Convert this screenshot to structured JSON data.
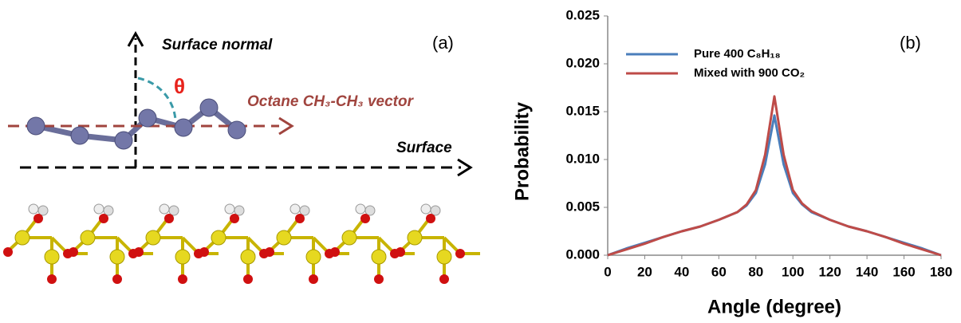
{
  "diagram": {
    "labels": {
      "normal": "Surface normal",
      "panel": "(a)",
      "angle": "θ",
      "vector": "Octane CH₃-CH₃ vector",
      "surface": "Surface"
    }
  },
  "chart_data": {
    "type": "line",
    "panel_label": "(b)",
    "x_label": "Angle (degree)",
    "y_label": "Probability",
    "xlim": [
      0,
      180
    ],
    "xticks": [
      0,
      20,
      40,
      60,
      80,
      100,
      120,
      140,
      160,
      180
    ],
    "ylim": [
      0,
      0.025
    ],
    "yticks": [
      {
        "value": 0,
        "label": "0.000"
      },
      0.005,
      {
        "value": 0.01,
        "label": "0.010"
      },
      0.015,
      {
        "value": 0.02,
        "label": "0.020"
      },
      0.025
    ],
    "x": [
      0,
      10,
      20,
      30,
      40,
      50,
      60,
      70,
      75,
      80,
      85,
      90,
      95,
      100,
      105,
      110,
      120,
      130,
      140,
      150,
      160,
      170,
      180
    ],
    "series": [
      {
        "name": "Pure 400 C₈H₁₈",
        "color": "#4a7ebb",
        "values": [
          0,
          0.0007,
          0.0013,
          0.0019,
          0.0025,
          0.003,
          0.0037,
          0.0045,
          0.0052,
          0.0065,
          0.0095,
          0.0146,
          0.0095,
          0.0065,
          0.0053,
          0.0045,
          0.0037,
          0.003,
          0.0025,
          0.0019,
          0.0013,
          0.0007,
          0
        ]
      },
      {
        "name": "Mixed with 900 CO₂",
        "color": "#be4b48",
        "values": [
          0,
          0.0006,
          0.0012,
          0.0019,
          0.0025,
          0.003,
          0.0037,
          0.0045,
          0.0053,
          0.0068,
          0.0105,
          0.0166,
          0.0105,
          0.0068,
          0.0054,
          0.0046,
          0.0037,
          0.003,
          0.0025,
          0.0019,
          0.0012,
          0.0006,
          0
        ]
      }
    ]
  }
}
